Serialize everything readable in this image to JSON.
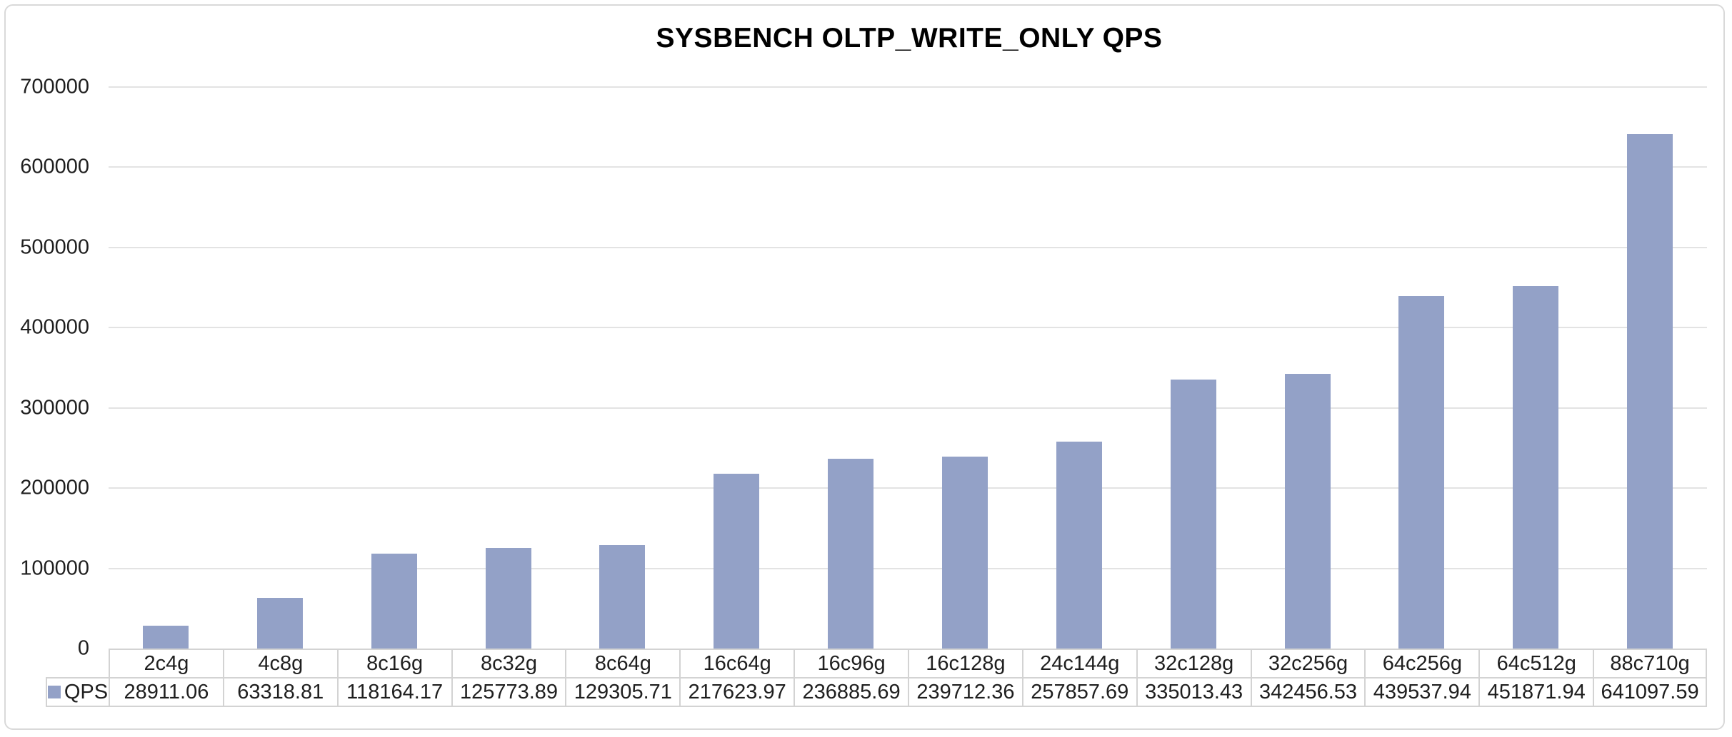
{
  "title": "SYSBENCH OLTP_WRITE_ONLY QPS",
  "legend": {
    "label": "QPS",
    "marker": "legend-color-swatch"
  },
  "colors": {
    "bar": "#93a1c7",
    "gridline": "#e3e3e3",
    "table_border": "#d3d3d3",
    "frame_border": "#d9d9d9",
    "text": "#1f1f1f",
    "title_text": "#000000",
    "background": "#ffffff"
  },
  "chart_data": {
    "type": "bar",
    "title": "SYSBENCH OLTP_WRITE_ONLY QPS",
    "categories": [
      "2c4g",
      "4c8g",
      "8c16g",
      "8c32g",
      "8c64g",
      "16c64g",
      "16c96g",
      "16c128g",
      "24c144g",
      "32c128g",
      "32c256g",
      "64c256g",
      "64c512g",
      "88c710g"
    ],
    "series": [
      {
        "name": "QPS",
        "values": [
          28911.06,
          63318.81,
          118164.17,
          125773.89,
          129305.71,
          217623.97,
          236885.69,
          239712.36,
          257857.69,
          335013.43,
          342456.53,
          439537.94,
          451871.94,
          641097.59
        ]
      }
    ],
    "xlabel": "",
    "ylabel": "",
    "ylim": [
      0,
      700000
    ],
    "ytick_interval": 100000,
    "yticks": [
      0,
      100000,
      200000,
      300000,
      400000,
      500000,
      600000,
      700000
    ],
    "grid": "horizontal",
    "legend_position": "bottom-left-of-data-table",
    "data_table_shown": true,
    "value_decimals": 2
  }
}
